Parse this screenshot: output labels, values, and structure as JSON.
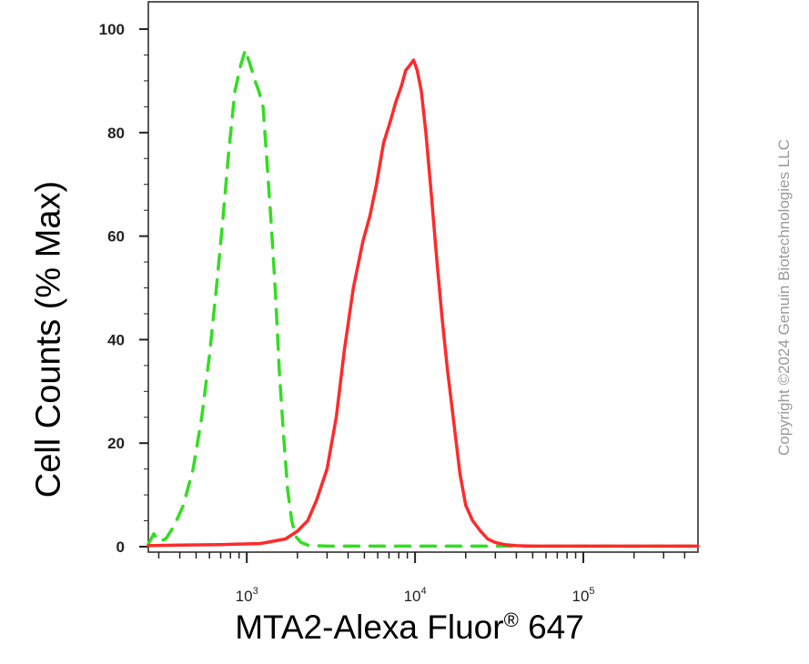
{
  "chart_data": {
    "type": "line",
    "title": "",
    "xlabel_main": "MTA2-Alexa Fluor",
    "xlabel_reg": "®",
    "xlabel_num": " 647",
    "ylabel": "Cell Counts (% Max)",
    "watermark": "Copyright ©2024 Genuin Biotechnologies LLC",
    "xscale": "log",
    "xlim": [
      260,
      480000
    ],
    "ylim": [
      0,
      100
    ],
    "yticks": [
      0,
      20,
      40,
      60,
      80,
      100
    ],
    "xticks": [
      {
        "value": 1000,
        "base": "10",
        "exp": "3"
      },
      {
        "value": 10000,
        "base": "10",
        "exp": "4"
      },
      {
        "value": 100000,
        "base": "10",
        "exp": "5"
      }
    ],
    "grid": false,
    "series": [
      {
        "color": "#33dd22",
        "style": "dashed",
        "x": [
          260,
          280,
          300,
          330,
          370,
          420,
          480,
          540,
          600,
          660,
          720,
          780,
          850,
          920,
          980,
          1050,
          1120,
          1180,
          1250,
          1320,
          1400,
          1480,
          1560,
          1650,
          1750,
          1850,
          1950,
          2100,
          2300,
          2600,
          3000,
          4000,
          6000,
          10000,
          30000,
          100000,
          480000
        ],
        "y": [
          0.5,
          2.5,
          1.0,
          1.5,
          4,
          8,
          15,
          25,
          37,
          50,
          63,
          76,
          88,
          93,
          96,
          93,
          90,
          88,
          85,
          74,
          62,
          49,
          34,
          22,
          11,
          5,
          2,
          0.8,
          0.3,
          0.2,
          0.1,
          0.1,
          0.1,
          0.1,
          0.1,
          0.1,
          0.1
        ]
      },
      {
        "color": "#ff2a2a",
        "style": "solid",
        "x": [
          260,
          400,
          700,
          1200,
          1700,
          2000,
          2300,
          2600,
          3000,
          3400,
          3800,
          4300,
          4900,
          5400,
          5900,
          6500,
          7100,
          7700,
          8300,
          8800,
          9300,
          9800,
          10300,
          10900,
          11600,
          12500,
          13500,
          14500,
          15600,
          17000,
          18500,
          20000,
          22000,
          24500,
          27000,
          30000,
          34000,
          40000,
          50000,
          100000,
          480000
        ],
        "y": [
          0.2,
          0.3,
          0.4,
          0.6,
          1.5,
          3,
          5,
          9,
          15,
          25,
          38,
          50,
          59,
          64,
          70,
          78,
          82,
          86,
          89,
          92,
          93,
          94,
          92,
          88,
          80,
          68,
          55,
          44,
          34,
          24,
          14,
          8,
          5,
          3,
          1.5,
          0.8,
          0.4,
          0.2,
          0.1,
          0.1,
          0.1
        ]
      }
    ]
  }
}
